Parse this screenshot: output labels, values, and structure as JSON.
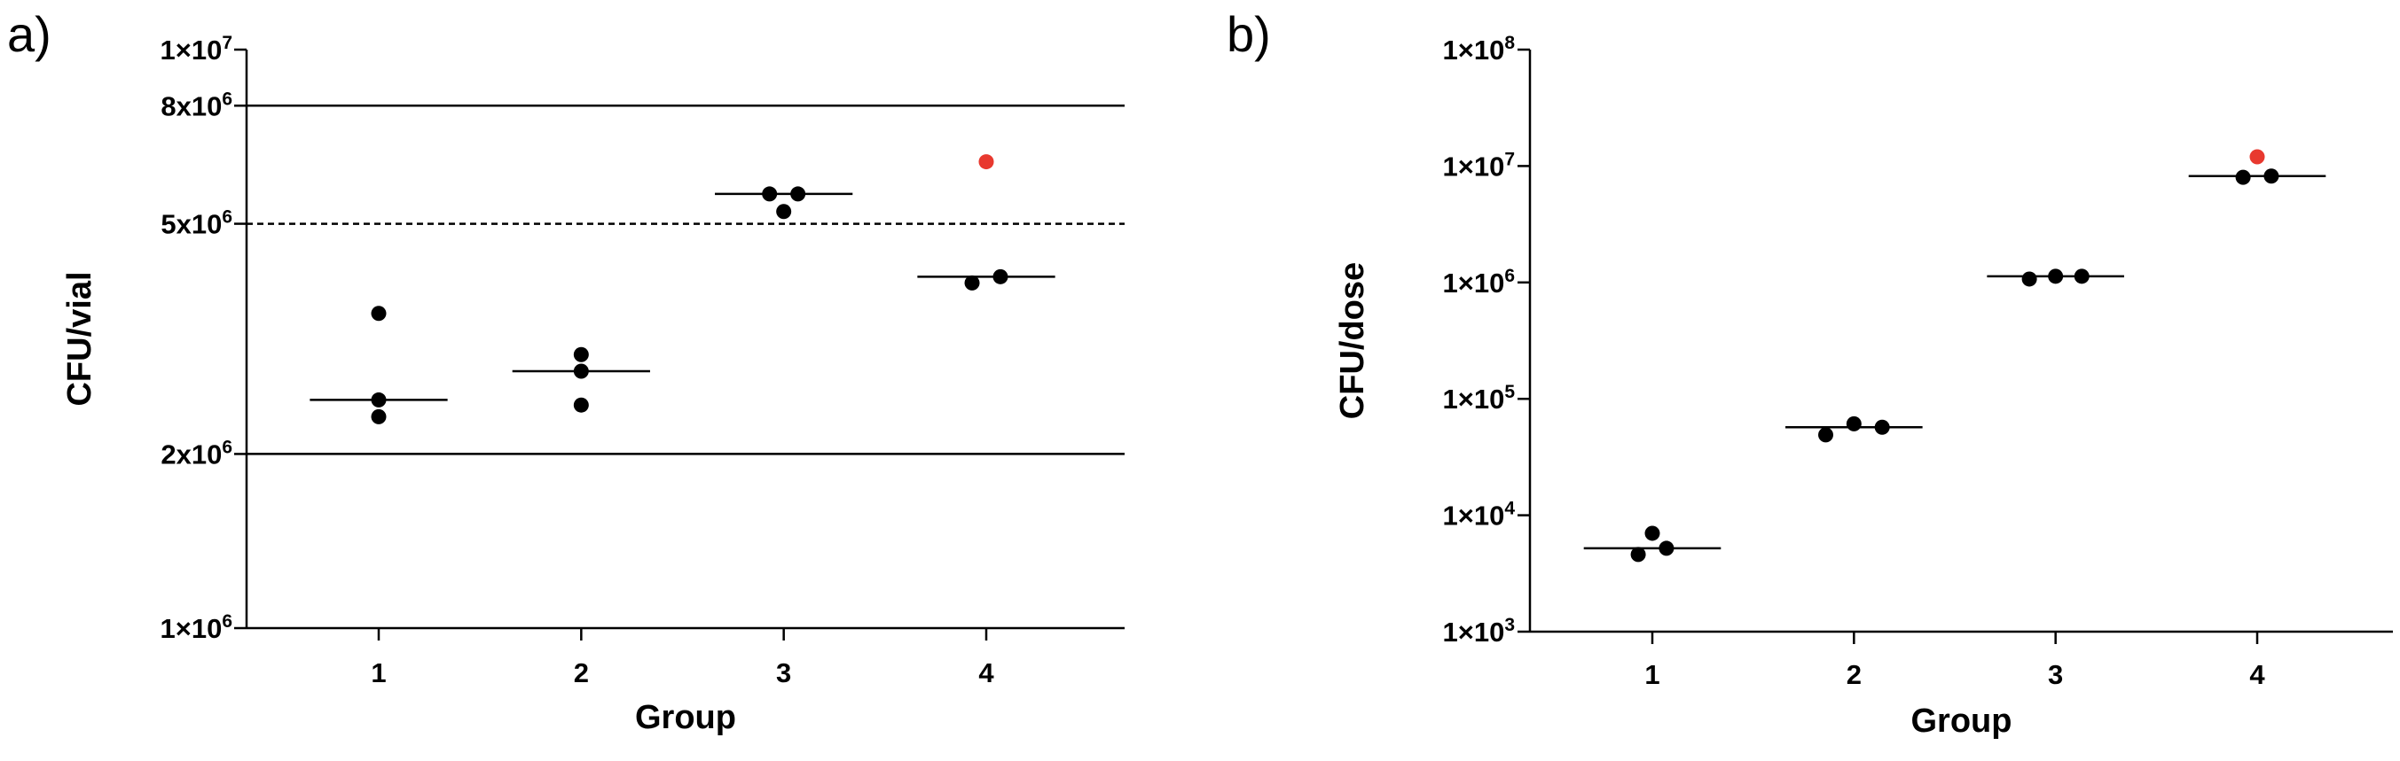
{
  "chart_data": [
    {
      "panel_label": "a)",
      "type": "scatter",
      "y_scale": "log",
      "xlabel": "Group",
      "ylabel": "CFU/vial",
      "categories": [
        "1",
        "2",
        "3",
        "4"
      ],
      "ylim": [
        1000000,
        10000000
      ],
      "y_ticks": [
        {
          "value": 10000000,
          "mant": "1×10",
          "exp": "7"
        },
        {
          "value": 8000000,
          "mant": "8x10",
          "exp": "6"
        },
        {
          "value": 5000000,
          "mant": "5x10",
          "exp": "6"
        },
        {
          "value": 2000000,
          "mant": "2x10",
          "exp": "6"
        },
        {
          "value": 1000000,
          "mant": "1×10",
          "exp": "6"
        }
      ],
      "reference_lines": [
        {
          "value": 8000000,
          "style": "solid"
        },
        {
          "value": 5000000,
          "style": "dashed"
        },
        {
          "value": 2000000,
          "style": "solid"
        }
      ],
      "groups": [
        {
          "x": 1,
          "points": [
            {
              "dx": 0,
              "y": 3500000
            },
            {
              "dx": 0,
              "y": 2480000
            },
            {
              "dx": 0,
              "y": 2320000
            }
          ],
          "median": 2480000
        },
        {
          "x": 2,
          "points": [
            {
              "dx": 0,
              "y": 2970000
            },
            {
              "dx": 0,
              "y": 2780000
            },
            {
              "dx": 0,
              "y": 2430000
            }
          ],
          "median": 2780000
        },
        {
          "x": 3,
          "points": [
            {
              "dx": -0.07,
              "y": 5630000
            },
            {
              "dx": 0.07,
              "y": 5630000
            },
            {
              "dx": 0,
              "y": 5250000
            }
          ],
          "median": 5630000
        },
        {
          "x": 4,
          "points": [
            {
              "dx": -0.07,
              "y": 3950000
            },
            {
              "dx": 0.07,
              "y": 4050000
            }
          ],
          "median": 4050000,
          "outlier": {
            "dx": 0,
            "y": 6400000,
            "color": "#e8392f"
          }
        }
      ],
      "grid": false
    },
    {
      "panel_label": "b)",
      "type": "scatter",
      "y_scale": "log",
      "xlabel": "Group",
      "ylabel": "CFU/dose",
      "categories": [
        "1",
        "2",
        "3",
        "4"
      ],
      "ylim": [
        1000,
        100000000
      ],
      "y_ticks": [
        {
          "value": 100000000,
          "mant": "1×10",
          "exp": "8"
        },
        {
          "value": 10000000,
          "mant": "1×10",
          "exp": "7"
        },
        {
          "value": 1000000,
          "mant": "1×10",
          "exp": "6"
        },
        {
          "value": 100000,
          "mant": "1×10",
          "exp": "5"
        },
        {
          "value": 10000,
          "mant": "1×10",
          "exp": "4"
        },
        {
          "value": 1000,
          "mant": "1×10",
          "exp": "3"
        }
      ],
      "reference_lines": [],
      "groups": [
        {
          "x": 1,
          "points": [
            {
              "dx": -0.07,
              "y": 4600
            },
            {
              "dx": 0,
              "y": 7000
            },
            {
              "dx": 0.07,
              "y": 5200
            }
          ],
          "median": 5200
        },
        {
          "x": 2,
          "points": [
            {
              "dx": -0.14,
              "y": 49000
            },
            {
              "dx": 0,
              "y": 61000
            },
            {
              "dx": 0.14,
              "y": 57000
            }
          ],
          "median": 57000
        },
        {
          "x": 3,
          "points": [
            {
              "dx": -0.13,
              "y": 1070000
            },
            {
              "dx": 0,
              "y": 1130000
            },
            {
              "dx": 0.13,
              "y": 1130000
            }
          ],
          "median": 1130000
        },
        {
          "x": 4,
          "points": [
            {
              "dx": -0.07,
              "y": 8000000
            },
            {
              "dx": 0.07,
              "y": 8200000
            }
          ],
          "median": 8200000,
          "outlier": {
            "dx": 0,
            "y": 12000000,
            "color": "#e8392f"
          }
        }
      ],
      "grid": false
    }
  ]
}
